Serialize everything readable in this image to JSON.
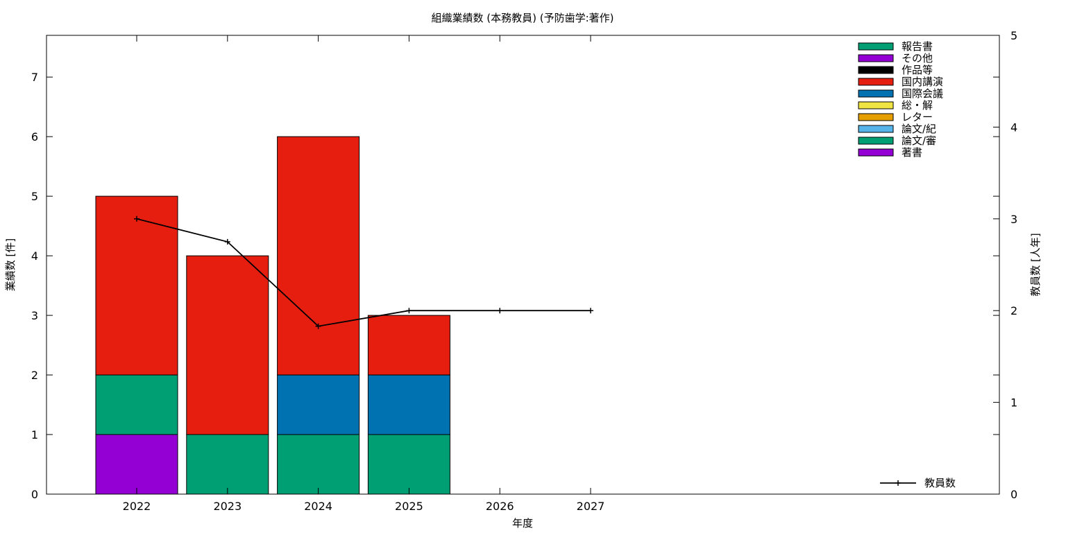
{
  "chart_data": {
    "type": "bar",
    "title": "組織業績数 (本務教員) (予防歯学:著作)",
    "xlabel": "年度",
    "ylabel": "業績数 [件]",
    "y2label": "教員数 [人年]",
    "categories": [
      "2022",
      "2023",
      "2024",
      "2025",
      "2026",
      "2027"
    ],
    "ylim": [
      0,
      7.7
    ],
    "y_ticks": [
      0,
      1,
      2,
      3,
      4,
      5,
      6,
      7
    ],
    "y2lim": [
      0,
      5
    ],
    "y2_ticks": [
      0,
      1,
      2,
      3,
      4,
      5
    ],
    "stacked": true,
    "series": [
      {
        "name": "著書",
        "color": "#9400d3",
        "values": [
          1,
          0,
          0,
          0,
          0,
          0
        ]
      },
      {
        "name": "論文/審",
        "color": "#009e73",
        "values": [
          1,
          1,
          1,
          1,
          0,
          0
        ]
      },
      {
        "name": "論文/紀",
        "color": "#56b4e9",
        "values": [
          0,
          0,
          0,
          0,
          0,
          0
        ]
      },
      {
        "name": "レター",
        "color": "#e69f00",
        "values": [
          0,
          0,
          0,
          0,
          0,
          0
        ]
      },
      {
        "name": "総・解",
        "color": "#f0e442",
        "values": [
          0,
          0,
          0,
          0,
          0,
          0
        ]
      },
      {
        "name": "国際会議",
        "color": "#0072b2",
        "values": [
          0,
          0,
          1,
          1,
          0,
          0
        ]
      },
      {
        "name": "国内講演",
        "color": "#e51e10",
        "values": [
          3,
          3,
          4,
          1,
          0,
          0
        ]
      },
      {
        "name": "作品等",
        "color": "#000000",
        "values": [
          0,
          0,
          0,
          0,
          0,
          0
        ]
      },
      {
        "name": "その他",
        "color": "#9400d3",
        "values": [
          0,
          0,
          0,
          0,
          0,
          0
        ]
      },
      {
        "name": "報告書",
        "color": "#009e73",
        "values": [
          0,
          0,
          0,
          0,
          0,
          0
        ]
      }
    ],
    "line_series": {
      "name": "教員数",
      "axis": "y2",
      "color": "#000000",
      "values": [
        3.0,
        2.75,
        1.83,
        2.0,
        2.0,
        2.0
      ]
    },
    "legend_position": "top-right",
    "line_legend_position": "bottom-right",
    "grid": false
  }
}
